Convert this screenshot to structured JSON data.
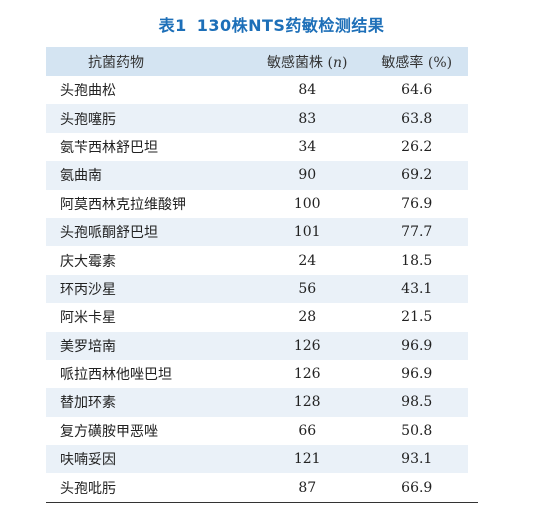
{
  "caption": {
    "number": "表1",
    "title": "130株NTS药敏检测结果"
  },
  "table": {
    "headers": {
      "drug": "抗菌药物",
      "count_prefix": "敏感菌株 (",
      "count_var": "n",
      "count_suffix": ")",
      "rate": "敏感率 (%)"
    },
    "rows": [
      {
        "drug": "头孢曲松",
        "count": "84",
        "rate": "64.6"
      },
      {
        "drug": "头孢噻肟",
        "count": "83",
        "rate": "63.8"
      },
      {
        "drug": "氨苄西林舒巴坦",
        "count": "34",
        "rate": "26.2"
      },
      {
        "drug": "氨曲南",
        "count": "90",
        "rate": "69.2"
      },
      {
        "drug": "阿莫西林克拉维酸钾",
        "count": "100",
        "rate": "76.9"
      },
      {
        "drug": "头孢哌酮舒巴坦",
        "count": "101",
        "rate": "77.7"
      },
      {
        "drug": "庆大霉素",
        "count": "24",
        "rate": "18.5"
      },
      {
        "drug": "环丙沙星",
        "count": "56",
        "rate": "43.1"
      },
      {
        "drug": "阿米卡星",
        "count": "28",
        "rate": "21.5"
      },
      {
        "drug": "美罗培南",
        "count": "126",
        "rate": "96.9"
      },
      {
        "drug": "哌拉西林他唑巴坦",
        "count": "126",
        "rate": "96.9"
      },
      {
        "drug": "替加环素",
        "count": "128",
        "rate": "98.5"
      },
      {
        "drug": "复方磺胺甲恶唑",
        "count": "66",
        "rate": "50.8"
      },
      {
        "drug": "呋喃妥因",
        "count": "121",
        "rate": "93.1"
      },
      {
        "drug": "头孢吡肟",
        "count": "87",
        "rate": "66.9"
      }
    ]
  },
  "colors": {
    "caption": "#1d6fb8",
    "header_bg": "#d4e4f2",
    "stripe_bg": "#eaf1f8"
  }
}
